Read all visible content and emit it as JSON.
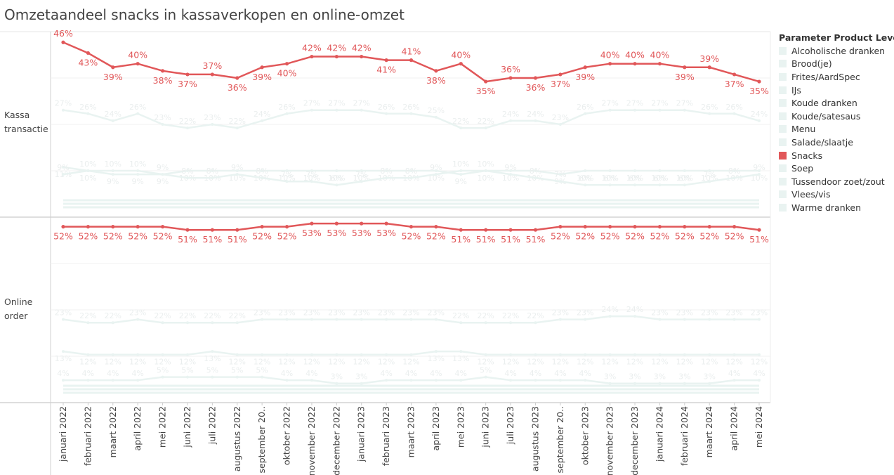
{
  "chart_data": {
    "type": "line",
    "title": "Omzetaandeel snacks in kassaverkopen en online-omzet",
    "x": [
      "januari 2022",
      "februari 2022",
      "maart 2022",
      "april 2022",
      "mei 2022",
      "juni 2022",
      "juli 2022",
      "augustus 2022",
      "september 20..",
      "oktober 2022",
      "november 2022",
      "december 2022",
      "januari 2023",
      "februari 2023",
      "maart 2023",
      "april 2023",
      "mei 2023",
      "juni 2023",
      "juli 2023",
      "augustus 2023",
      "september 20..",
      "oktober 2023",
      "november 2023",
      "december 2023",
      "januari 2024",
      "februari 2024",
      "maart 2024",
      "april 2024",
      "mei 2024"
    ],
    "panels": [
      {
        "label": "Kassa\ntransactie",
        "series": [
          {
            "name": "Snacks",
            "highlighted": true,
            "values": [
              46,
              43,
              39,
              40,
              38,
              37,
              37,
              36,
              39,
              40,
              42,
              42,
              42,
              41,
              41,
              38,
              40,
              35,
              36,
              36,
              37,
              39,
              40,
              40,
              40,
              39,
              39,
              37,
              35
            ]
          },
          {
            "name": "Koude dranken",
            "highlighted": false,
            "values": [
              27,
              26,
              24,
              26,
              23,
              22,
              23,
              22,
              24,
              26,
              27,
              27,
              27,
              26,
              26,
              25,
              22,
              22,
              24,
              24,
              23,
              26,
              27,
              27,
              27,
              27,
              26,
              26,
              24
            ]
          },
          {
            "name": "Brood(je)",
            "highlighted": false,
            "values": [
              11,
              10,
              9,
              9,
              9,
              10,
              10,
              10,
              10,
              10,
              10,
              10,
              10,
              10,
              10,
              10,
              9,
              10,
              10,
              10,
              9,
              10,
              10,
              10,
              10,
              10,
              10,
              10,
              10
            ]
          },
          {
            "name": "Warme dranken",
            "highlighted": false,
            "values": [
              9,
              10,
              10,
              10,
              9,
              8,
              8,
              9,
              8,
              7,
              7,
              6,
              7,
              8,
              8,
              9,
              10,
              10,
              9,
              8,
              7,
              6,
              6,
              6,
              6,
              6,
              7,
              8,
              9
            ]
          }
        ]
      },
      {
        "label": "Online\norder",
        "series": [
          {
            "name": "Snacks",
            "highlighted": true,
            "values": [
              52,
              52,
              52,
              52,
              52,
              51,
              51,
              51,
              52,
              52,
              53,
              53,
              53,
              53,
              52,
              52,
              51,
              51,
              51,
              51,
              52,
              52,
              52,
              52,
              52,
              52,
              52,
              52,
              51
            ]
          },
          {
            "name": "Koude dranken",
            "highlighted": false,
            "values": [
              23,
              22,
              22,
              23,
              22,
              22,
              22,
              22,
              23,
              23,
              23,
              23,
              23,
              23,
              23,
              23,
              22,
              22,
              22,
              22,
              23,
              23,
              24,
              24,
              23,
              23,
              23,
              23,
              23
            ]
          },
          {
            "name": "Menu",
            "highlighted": false,
            "values": [
              13,
              12,
              12,
              12,
              12,
              12,
              13,
              12,
              12,
              12,
              12,
              12,
              12,
              12,
              12,
              13,
              13,
              12,
              12,
              12,
              12,
              12,
              12,
              12,
              12,
              12,
              12,
              12,
              12
            ]
          },
          {
            "name": "Frites/AardSpec",
            "highlighted": false,
            "values": [
              4,
              4,
              4,
              4,
              5,
              5,
              5,
              5,
              5,
              4,
              4,
              3,
              3,
              4,
              4,
              4,
              4,
              5,
              4,
              4,
              4,
              4,
              3,
              3,
              3,
              3,
              3,
              4,
              4
            ]
          }
        ]
      }
    ],
    "legend_title": "Parameter Product Level",
    "legend": [
      "Alcoholische dranken",
      "Brood(je)",
      "Frites/AardSpec",
      "IJs",
      "Koude dranken",
      "Koude/satesaus",
      "Menu",
      "Salade/slaatje",
      "Snacks",
      "Soep",
      "Tussendoor zoet/zout",
      "Vlees/vis",
      "Warme dranken"
    ],
    "highlighted_series": "Snacks",
    "colors": {
      "highlight": "#e15759",
      "muted": "#e9f3f1",
      "muted_text": "#eaeeee",
      "label_text": "#e15759"
    },
    "grid": true,
    "legend_position": "right"
  }
}
